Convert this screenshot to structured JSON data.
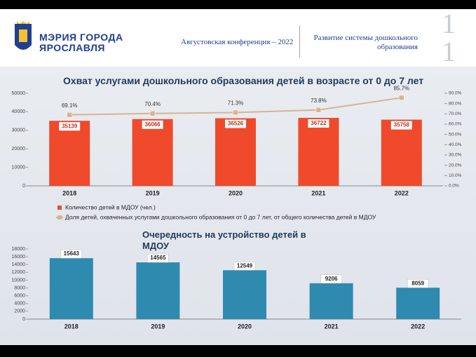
{
  "header": {
    "org_name": [
      "МЭРИЯ ГОРОДА",
      "ЯРОСЛАВЛЯ"
    ],
    "conference": "Августовская конференция – 2022",
    "topic": "Развитие системы дошкольного образования",
    "page_number": "11"
  },
  "chart_data": [
    {
      "type": "bar",
      "title": "Охват услугами дошкольного образования детей  в возрасте от 0 до 7 лет",
      "categories": [
        "2018",
        "2019",
        "2020",
        "2021",
        "2022"
      ],
      "series": [
        {
          "name": "Количество детей в МДОУ (чел.)",
          "color": "#ef4a2b",
          "values": [
            35139,
            36066,
            36526,
            36722,
            35758
          ]
        },
        {
          "name": "Доля детей, охваченных услугами дошкольного образования от 0 до 7 лет, от общего количества детей в МДОУ",
          "type": "line",
          "axis": "y2",
          "color": "#d8b48e",
          "values": [
            69.1,
            70.4,
            71.3,
            73.8,
            85.7
          ],
          "value_labels": [
            "69.1%",
            "70.4%",
            "71.3%",
            "73.8%",
            "85.7%"
          ]
        }
      ],
      "ylim": [
        0,
        50000
      ],
      "yticks": [
        0,
        10000,
        20000,
        30000,
        40000,
        50000
      ],
      "y2lim": [
        0,
        90
      ],
      "y2ticks": [
        {
          "value": 0,
          "label": "0.0%"
        },
        {
          "value": 10,
          "label": "10.0%"
        },
        {
          "value": 20,
          "label": "20.0%"
        },
        {
          "value": 30,
          "label": "30.0%"
        },
        {
          "value": 40,
          "label": "40.0%"
        },
        {
          "value": 50,
          "label": "50.0%"
        },
        {
          "value": 60,
          "label": "60.0%"
        },
        {
          "value": 70,
          "label": "70.0%"
        },
        {
          "value": 80,
          "label": "80.0%"
        },
        {
          "value": 90,
          "label": "90.0%"
        }
      ],
      "grid": false
    },
    {
      "type": "bar",
      "title": "Очередность на устройство детей в МДОУ",
      "categories": [
        "2018",
        "2019",
        "2020",
        "2021",
        "2022"
      ],
      "values": [
        15643,
        14565,
        12549,
        9206,
        8059
      ],
      "color": "#2f8ab0",
      "ylim": [
        0,
        18000
      ],
      "yticks": [
        0,
        2000,
        4000,
        6000,
        8000,
        10000,
        12000,
        14000,
        16000,
        18000
      ],
      "grid": false
    }
  ]
}
